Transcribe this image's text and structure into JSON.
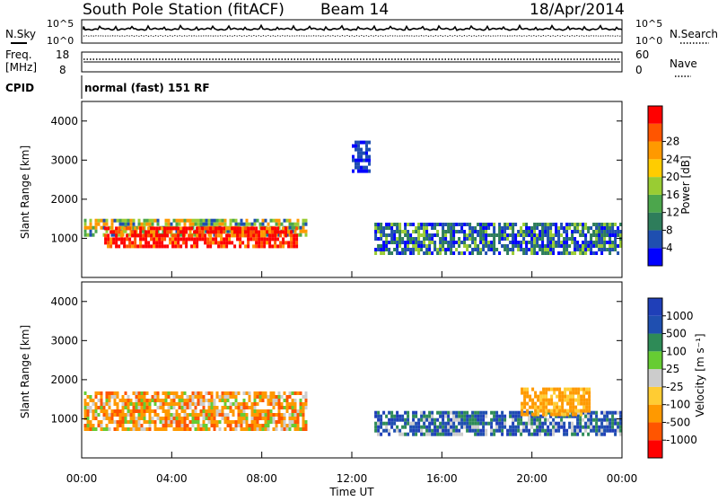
{
  "header": {
    "station": "South Pole Station (fitACF)",
    "beam": "Beam 14",
    "date": "18/Apr/2014"
  },
  "noise_panel": {
    "left_label": "N.Sky",
    "right_label": "N.Search",
    "left_top": "10^5",
    "left_bottom": "10^0",
    "right_top": "10^5",
    "right_bottom": "10^0"
  },
  "freq_panel": {
    "left_label_1": "Freq.",
    "left_label_2": "[MHz]",
    "left_top": "18",
    "left_bottom": "8",
    "right_label": "Nave",
    "right_top": "60",
    "right_bottom": "0"
  },
  "cpid": {
    "label": "CPID",
    "text": "normal (fast) 151 RF"
  },
  "colors": {
    "power": [
      "#0000ff",
      "#1f4fb0",
      "#2e7d5b",
      "#4ca64c",
      "#99cc33",
      "#ffcc00",
      "#ff9900",
      "#ff5500",
      "#ff0000"
    ],
    "velocity": [
      "#ff0000",
      "#ff5500",
      "#ff9900",
      "#ffcc33",
      "#cccccc",
      "#66cc33",
      "#2e8b57",
      "#1f4fb0",
      "#1f3fb8"
    ]
  },
  "chart_data": [
    {
      "type": "heatmap",
      "name": "power",
      "xlabel": "",
      "ylabel": "Slant Range [km]",
      "xlim": [
        "00:00",
        "24:00"
      ],
      "ylim": [
        0,
        4500
      ],
      "y_ticks": [
        "1000",
        "2000",
        "3000",
        "4000"
      ],
      "colorbar_label": "Power [dB]",
      "colorbar_ticks": [
        "4",
        "8",
        "12",
        "16",
        "20",
        "24",
        "28"
      ],
      "regions": [
        {
          "t": [
            0.1,
            10.0
          ],
          "range": [
            1100,
            1500
          ],
          "value_db": 24
        },
        {
          "t": [
            1.0,
            9.5
          ],
          "range": [
            800,
            1300
          ],
          "value_db": 28
        },
        {
          "t": [
            12.0,
            12.8
          ],
          "range": [
            2700,
            3500
          ],
          "value_db": 8
        },
        {
          "t": [
            13.0,
            24.0
          ],
          "range": [
            600,
            1400
          ],
          "value_db": 8
        }
      ]
    },
    {
      "type": "heatmap",
      "name": "velocity",
      "xlabel": "Time UT",
      "ylabel": "Slant Range [km]",
      "xlim": [
        "00:00",
        "24:00"
      ],
      "ylim": [
        0,
        4500
      ],
      "x_ticks": [
        "00:00",
        "04:00",
        "08:00",
        "12:00",
        "16:00",
        "20:00",
        "00:00"
      ],
      "y_ticks": [
        "1000",
        "2000",
        "3000",
        "4000"
      ],
      "colorbar_label": "Velocity [m s⁻¹]",
      "colorbar_ticks": [
        "1000",
        "500",
        "100",
        "25",
        "-25",
        "-100",
        "-500",
        "-1000"
      ],
      "regions": [
        {
          "t": [
            0.1,
            10.0
          ],
          "range": [
            700,
            1700
          ],
          "value_ms": -100
        },
        {
          "t": [
            13.0,
            24.0
          ],
          "range": [
            600,
            1200
          ],
          "value_ms": 500
        },
        {
          "t": [
            19.5,
            22.5
          ],
          "range": [
            1100,
            1800
          ],
          "value_ms": -100
        }
      ]
    }
  ]
}
